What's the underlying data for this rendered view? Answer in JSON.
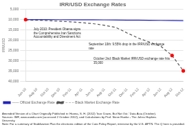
{
  "chart_data": {
    "type": "line",
    "title": "IRR/USD Exchange Rates",
    "ylabel": "IRR/USD",
    "categories": [
      "Jun-10",
      "Aug-10",
      "Oct-10",
      "Dec-10",
      "Feb-11",
      "Apr-11",
      "Jun-11",
      "Aug-11",
      "Oct-11",
      "Dec-11",
      "Feb-12",
      "Apr-12",
      "Jun-12",
      "Aug-12",
      "Oct-12"
    ],
    "series": [
      {
        "name": "—— Official Exchange Rate",
        "color": "#2222bb",
        "line_style": "solid",
        "marker": "circle",
        "colors": [
          "red",
          null,
          null,
          null,
          null,
          null,
          null,
          null,
          null,
          null,
          null,
          null,
          null,
          null,
          null
        ],
        "values": [
          10000,
          10050,
          10060,
          10080,
          10100,
          10120,
          10140,
          10160,
          10200,
          10250,
          10300,
          10350,
          10400,
          10450,
          10500
        ]
      },
      {
        "name": "-- -- -- Black Market Exchange Rate",
        "color": "#555555",
        "line_style": "dashed",
        "marker": "circle",
        "colors": [
          null,
          null,
          null,
          null,
          null,
          null,
          null,
          null,
          null,
          null,
          null,
          null,
          null,
          "red",
          "red"
        ],
        "values": [
          10200,
          10300,
          10500,
          10800,
          11100,
          11500,
          12000,
          12800,
          13800,
          16500,
          19000,
          21000,
          23000,
          27500,
          35000
        ]
      }
    ],
    "ylim": [
      40000,
      5000
    ],
    "yticks": [
      {
        "value": 5000,
        "label": "5,000"
      },
      {
        "value": 10000,
        "label": "10,000"
      },
      {
        "value": 15000,
        "label": "15,000"
      },
      {
        "value": 20000,
        "label": "20,000"
      },
      {
        "value": 25000,
        "label": "25,000"
      },
      {
        "value": 30000,
        "label": "30,000"
      },
      {
        "value": 35000,
        "label": "35,000"
      },
      {
        "value": 40000,
        "label": "40,000"
      }
    ],
    "grid": true,
    "legend": "lower left",
    "annotations": [
      "July 2010: President Obama signs\nthe Comprehensive Iran Sanctions\nAccountability and Divestment Act",
      "September 10th: 9.55% drop in the IRR/USD exchange\nrate",
      "October 2nd: Black Market IRR/USD exchange rate hits\n35,000"
    ],
    "footnotes": [
      "Amended Version of a Chart Originally Published in: Hanna, S. H. (2012) 'Iran: Down, But Not Out.' Data Asia (October).",
      "Sources: IMF, www.oanda.com (accessed 2 October 2012), and Calculations by Prof. Steve Hanke - The Johns Hopkins",
      "University.",
      "Note: For a summary of Stabilization Plan the electronic edition of the Cato Policy Report, interview by the U.S. APTN. The Q here is provided."
    ]
  }
}
